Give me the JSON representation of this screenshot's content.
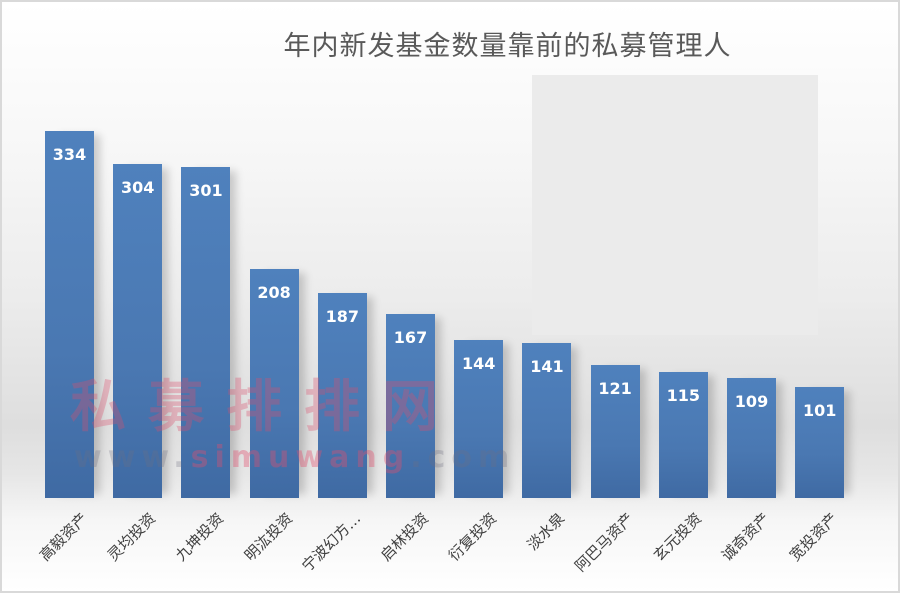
{
  "chart_data": {
    "type": "bar",
    "title": "年内新发基金数量靠前的私募管理人",
    "xlabel": "",
    "ylabel": "",
    "categories": [
      "高毅资产",
      "灵均投资",
      "九坤投资",
      "明汯投资",
      "宁波幻方…",
      "启林投资",
      "衍复投资",
      "淡水泉",
      "阿巴马资产",
      "玄元投资",
      "诚奇资产",
      "宽投资产"
    ],
    "values": [
      334,
      304,
      301,
      208,
      187,
      167,
      144,
      141,
      121,
      115,
      109,
      101
    ],
    "data_labels": true,
    "grid": false,
    "legend": "none",
    "bar_color": "#4f81bd"
  },
  "watermark": {
    "cn": "私募排排网",
    "url_prefix": "www.",
    "url_mid": "simuwang",
    "url_suffix": ".com"
  }
}
